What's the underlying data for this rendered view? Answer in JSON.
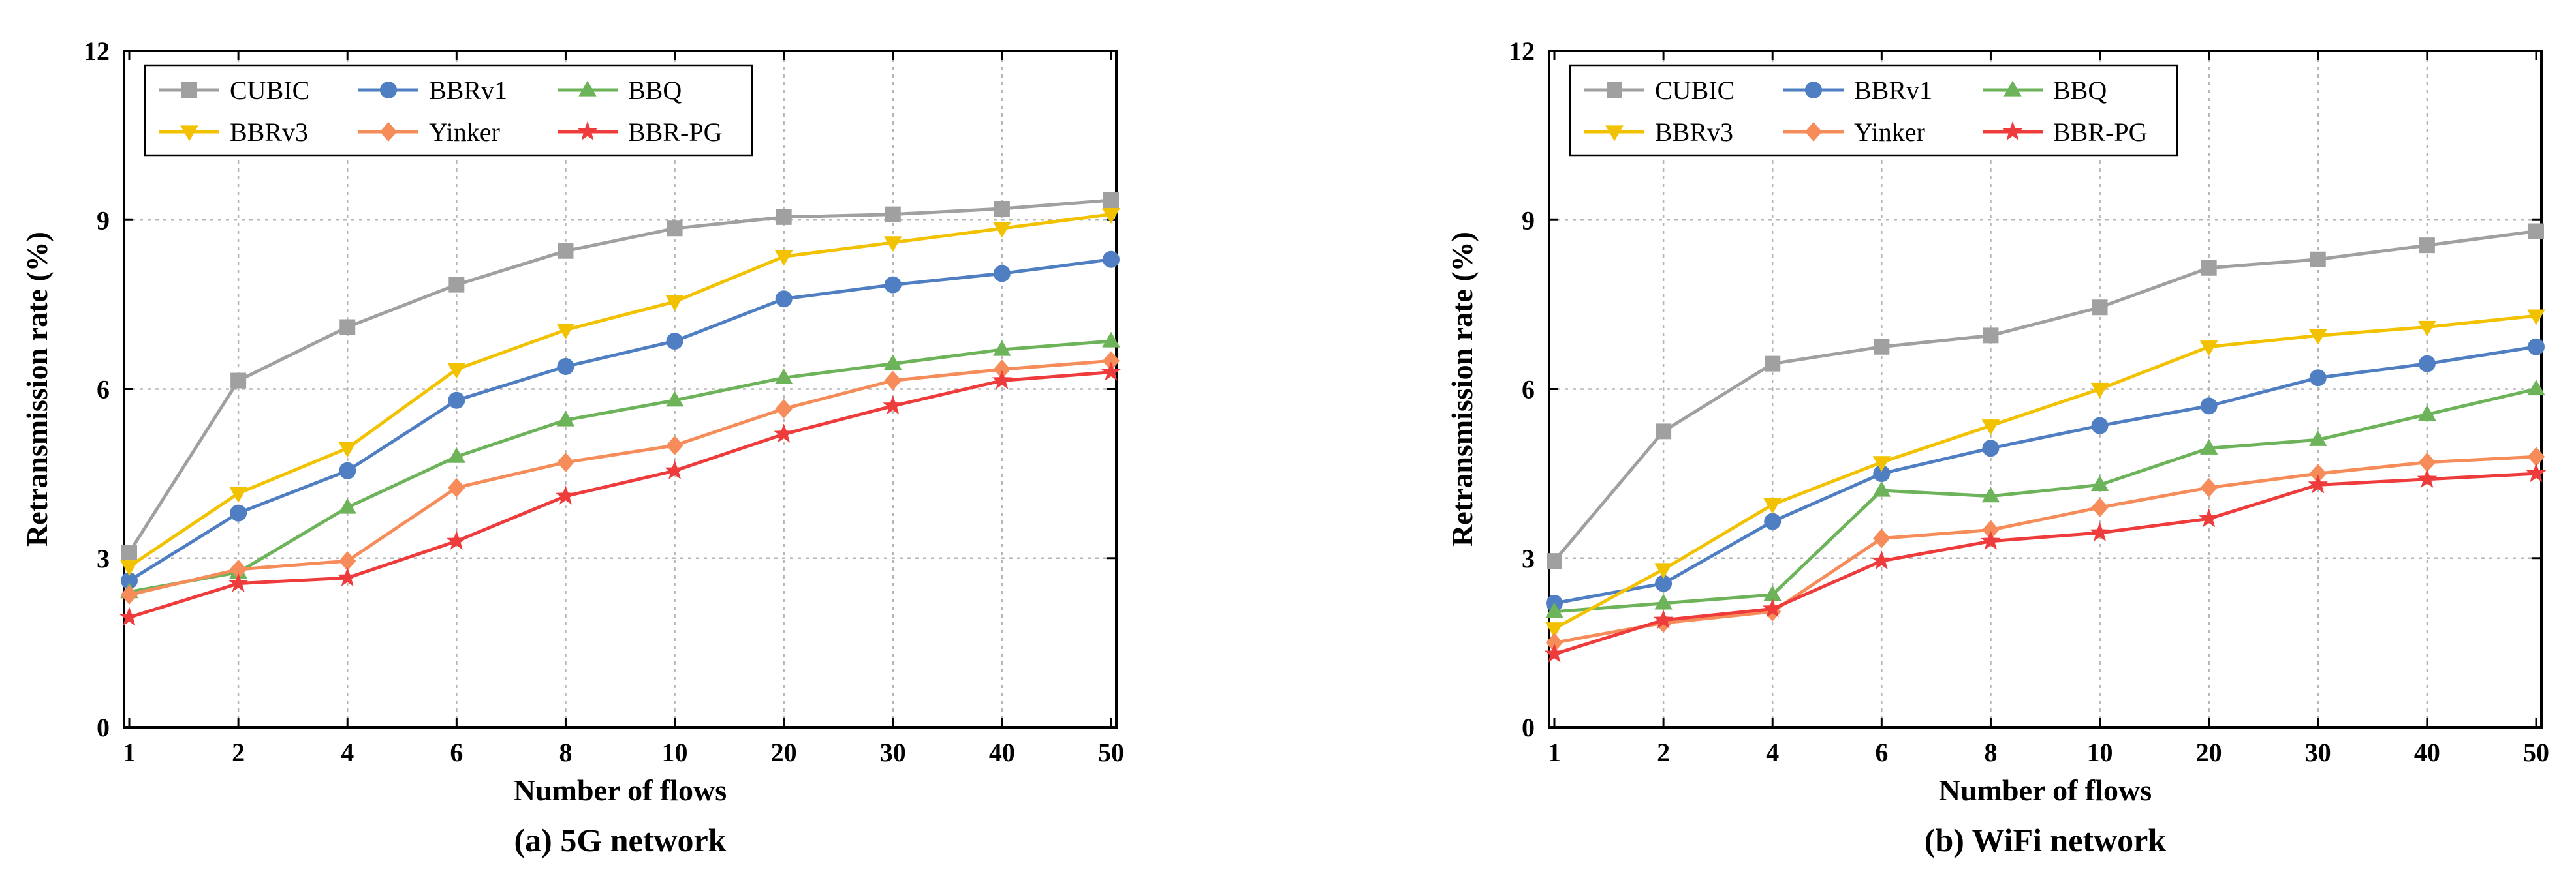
{
  "chart_data": [
    {
      "type": "line",
      "panel": "a",
      "caption": "(a) 5G  network",
      "xlabel": "Number of flows",
      "ylabel": "Retransmission rate (%)",
      "categories": [
        "1",
        "2",
        "4",
        "6",
        "8",
        "10",
        "20",
        "30",
        "40",
        "50"
      ],
      "ylim": [
        0,
        12
      ],
      "yticks": [
        0,
        3,
        6,
        9,
        12
      ],
      "grid": true,
      "legend_position": "top-left",
      "series": [
        {
          "name": "CUBIC",
          "color": "#a0a0a0",
          "marker": "square",
          "values": [
            3.1,
            6.15,
            7.1,
            7.85,
            8.45,
            8.85,
            9.05,
            9.1,
            9.2,
            9.35
          ]
        },
        {
          "name": "BBRv1",
          "color": "#4f7fc2",
          "marker": "circle",
          "values": [
            2.6,
            3.8,
            4.55,
            5.8,
            6.4,
            6.85,
            7.6,
            7.85,
            8.05,
            8.3
          ]
        },
        {
          "name": "BBQ",
          "color": "#6db35a",
          "marker": "triangle",
          "values": [
            2.4,
            2.75,
            3.9,
            4.8,
            5.45,
            5.8,
            6.2,
            6.45,
            6.7,
            6.85
          ]
        },
        {
          "name": "BBRv3",
          "color": "#f2c200",
          "marker": "triangle-down",
          "values": [
            2.85,
            4.15,
            4.95,
            6.35,
            7.05,
            7.55,
            8.35,
            8.6,
            8.85,
            9.1
          ]
        },
        {
          "name": "Yinker",
          "color": "#f58c5a",
          "marker": "diamond",
          "values": [
            2.35,
            2.8,
            2.95,
            4.25,
            4.7,
            5.0,
            5.65,
            6.15,
            6.35,
            6.5
          ]
        },
        {
          "name": "BBR-PG",
          "color": "#ee3b3b",
          "marker": "star",
          "values": [
            1.95,
            2.55,
            2.65,
            3.3,
            4.1,
            4.55,
            5.2,
            5.7,
            6.15,
            6.3
          ]
        }
      ]
    },
    {
      "type": "line",
      "panel": "b",
      "caption": "(b) WiFi  network",
      "xlabel": "Number of flows",
      "ylabel": "Retransmission rate (%)",
      "categories": [
        "1",
        "2",
        "4",
        "6",
        "8",
        "10",
        "20",
        "30",
        "40",
        "50"
      ],
      "ylim": [
        0,
        12
      ],
      "yticks": [
        0,
        3,
        6,
        9,
        12
      ],
      "grid": true,
      "legend_position": "top-left",
      "series": [
        {
          "name": "CUBIC",
          "color": "#a0a0a0",
          "marker": "square",
          "values": [
            2.95,
            5.25,
            6.45,
            6.75,
            6.95,
            7.45,
            8.15,
            8.3,
            8.55,
            8.8
          ]
        },
        {
          "name": "BBRv1",
          "color": "#4f7fc2",
          "marker": "circle",
          "values": [
            2.2,
            2.55,
            3.65,
            4.5,
            4.95,
            5.35,
            5.7,
            6.2,
            6.45,
            6.75
          ]
        },
        {
          "name": "BBQ",
          "color": "#6db35a",
          "marker": "triangle",
          "values": [
            2.05,
            2.2,
            2.35,
            4.2,
            4.1,
            4.3,
            4.95,
            5.1,
            5.55,
            6.0
          ]
        },
        {
          "name": "BBRv3",
          "color": "#f2c200",
          "marker": "triangle-down",
          "values": [
            1.75,
            2.8,
            3.95,
            4.7,
            5.35,
            6.0,
            6.75,
            6.95,
            7.1,
            7.3
          ]
        },
        {
          "name": "Yinker",
          "color": "#f58c5a",
          "marker": "diamond",
          "values": [
            1.5,
            1.85,
            2.05,
            3.35,
            3.5,
            3.9,
            4.25,
            4.5,
            4.7,
            4.8
          ]
        },
        {
          "name": "BBR-PG",
          "color": "#ee3b3b",
          "marker": "star",
          "values": [
            1.3,
            1.9,
            2.1,
            2.95,
            3.3,
            3.45,
            3.7,
            4.3,
            4.4,
            4.5
          ]
        }
      ]
    }
  ]
}
